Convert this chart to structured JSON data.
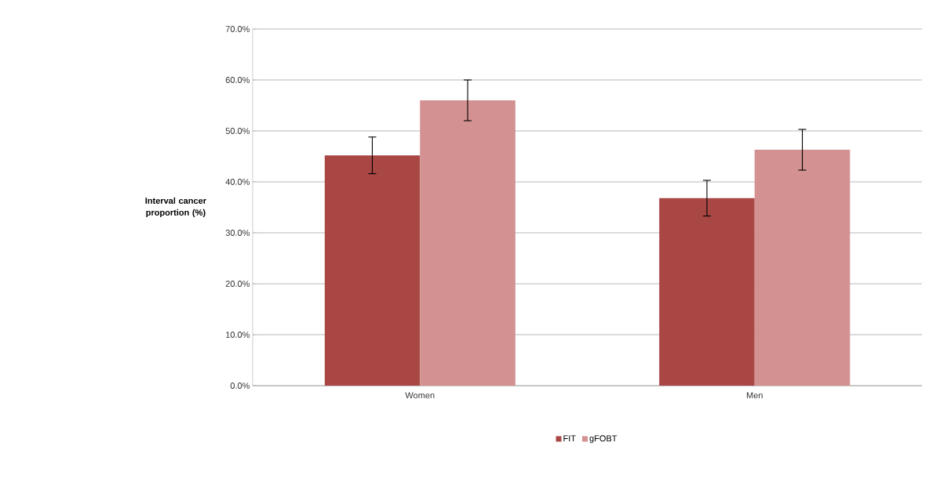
{
  "chart_data": {
    "type": "bar",
    "ylabel": "Interval cancer proportion (%)",
    "categories": [
      "Women",
      "Men"
    ],
    "series": [
      {
        "name": "FIT",
        "color": "#a84744",
        "values": [
          45.2,
          36.8
        ],
        "errors": [
          3.6,
          3.5
        ]
      },
      {
        "name": "gFOBT",
        "color": "#d39191",
        "values": [
          56.0,
          46.3
        ],
        "errors": [
          4,
          4
        ]
      }
    ],
    "ylim": [
      0,
      70
    ],
    "yticks": [
      {
        "value": 0,
        "label": "0.0%"
      },
      {
        "value": 10,
        "label": "10.0%"
      },
      {
        "value": 20,
        "label": "20.0%"
      },
      {
        "value": 30,
        "label": "30.0%"
      },
      {
        "value": 40,
        "label": "40.0%"
      },
      {
        "value": 50,
        "label": "50.0%"
      },
      {
        "value": 60,
        "label": "60.0%"
      },
      {
        "value": 70,
        "label": "70.0%"
      }
    ],
    "grid": "y",
    "legend": "bottom"
  }
}
